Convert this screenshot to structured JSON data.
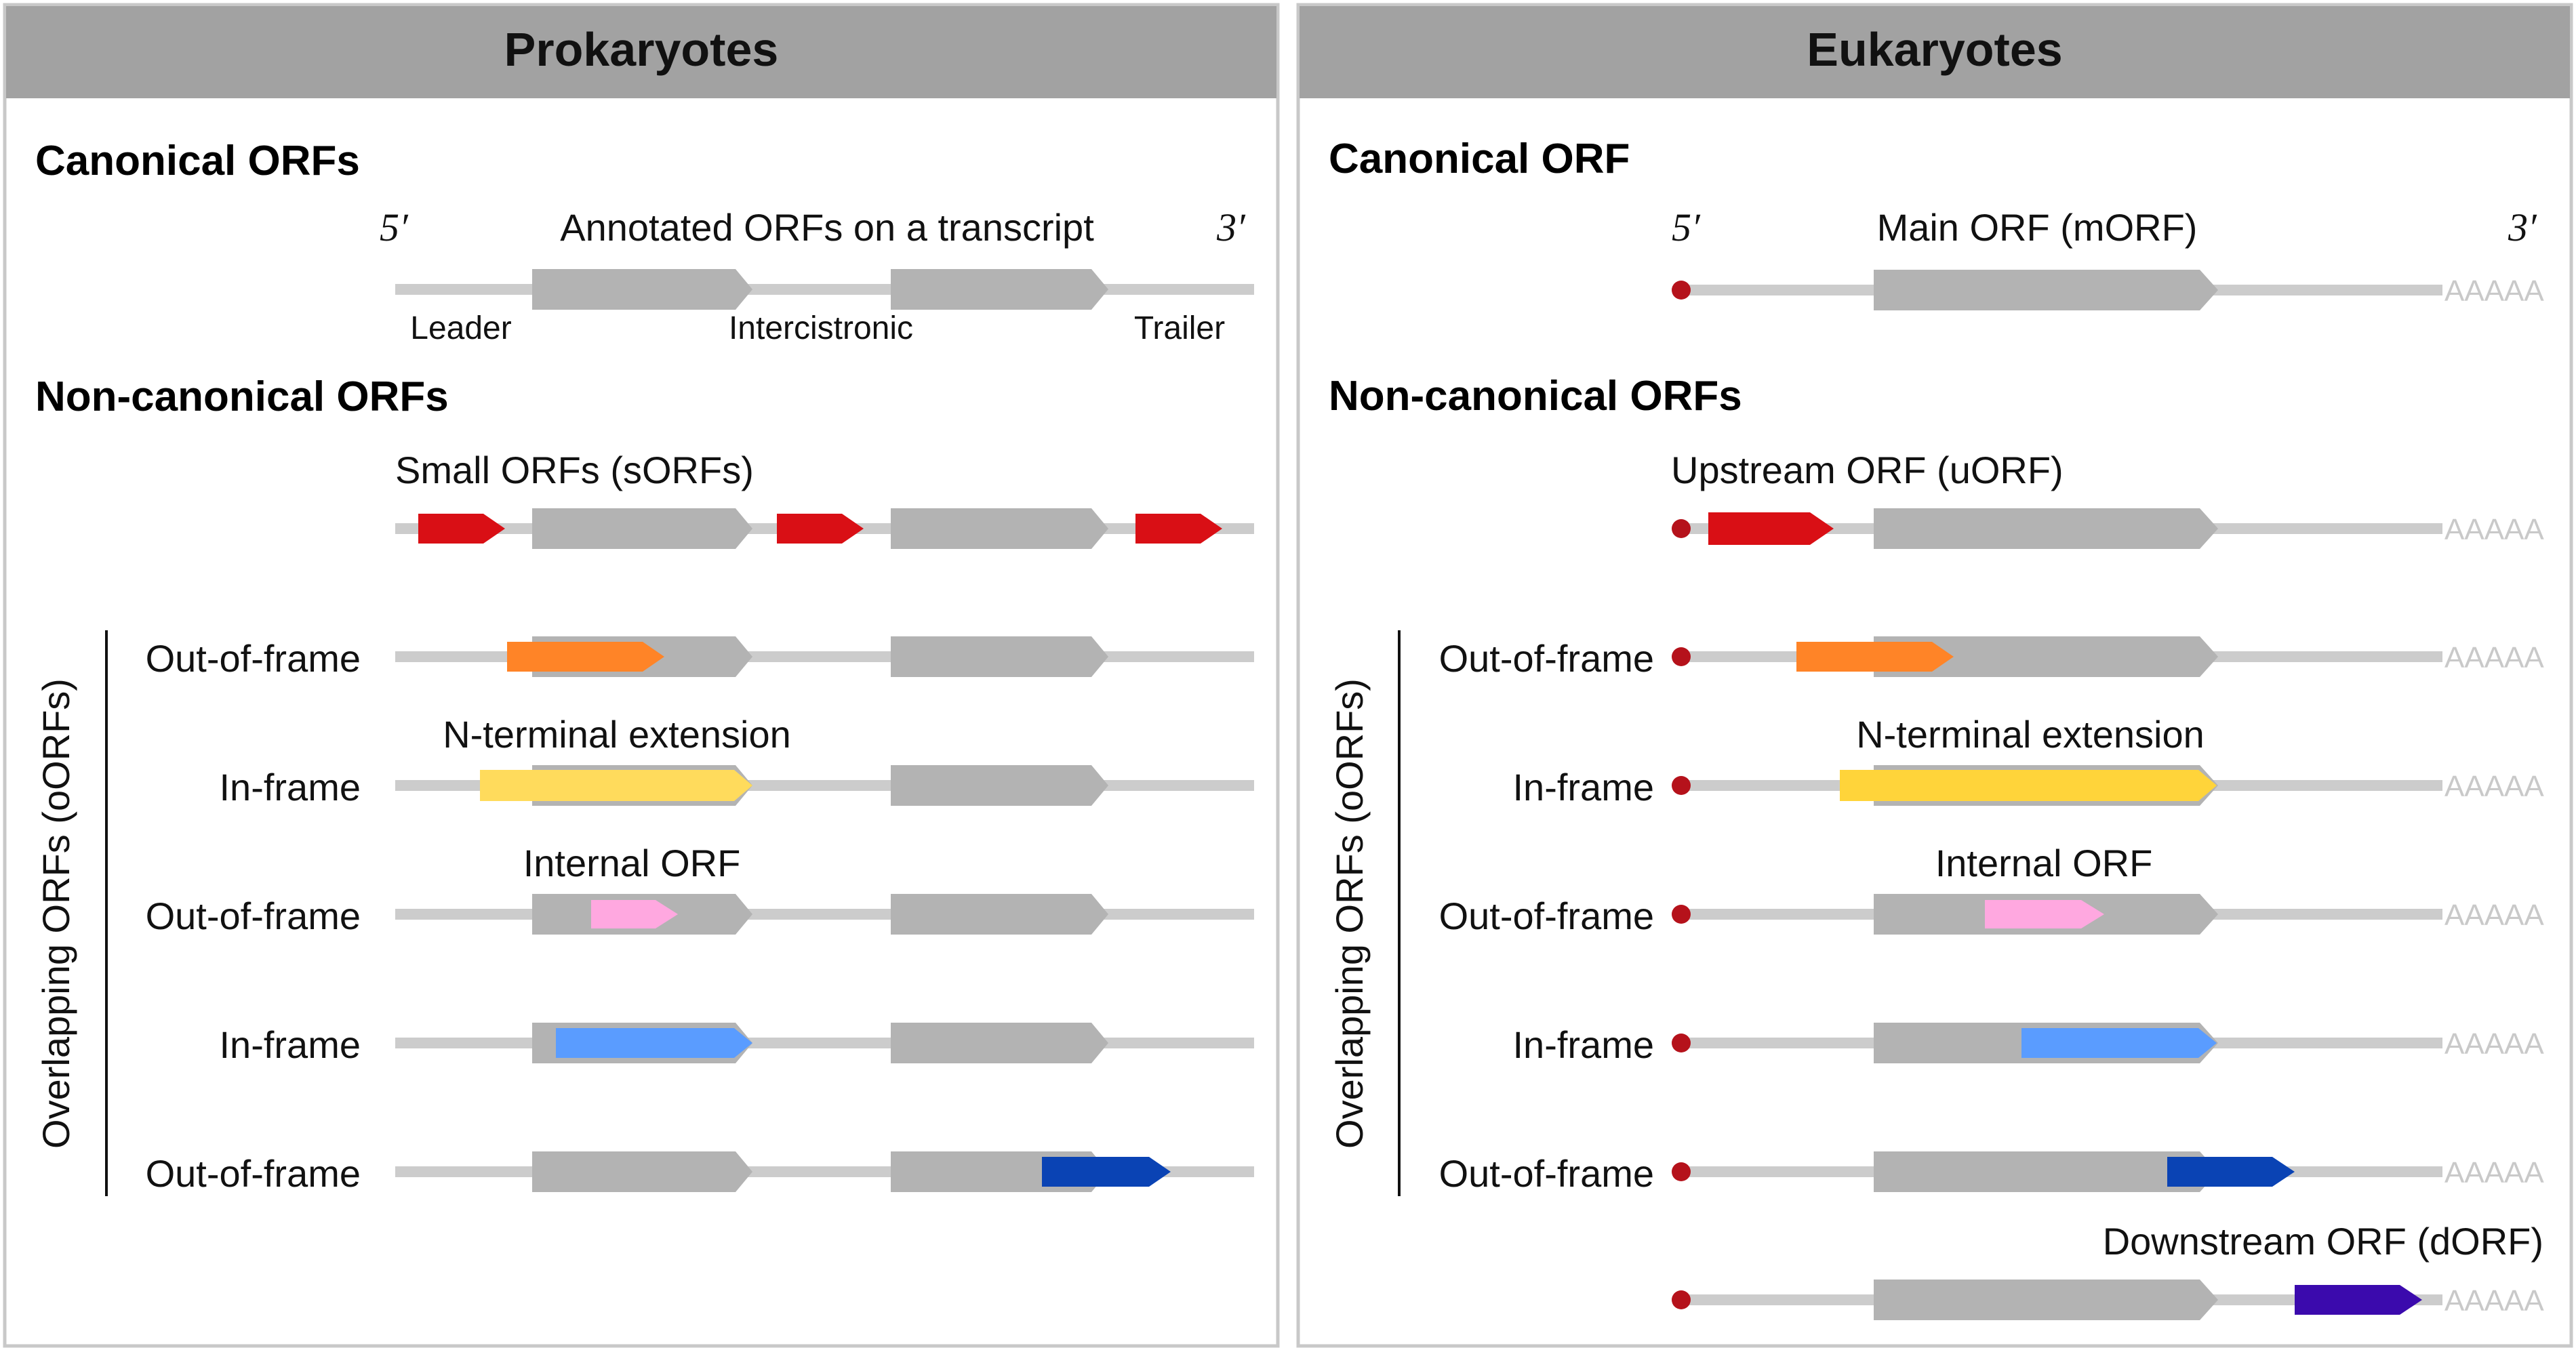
{
  "colors": {
    "header_bg": "#a2a2a2",
    "panel_border": "#c8c8c8",
    "line": "#cccccc",
    "main_orf": "#b3b3b3",
    "cap": "#b5121b",
    "small_orf": "#d90f15",
    "uorf": "#d90f15",
    "out_of_frame_1": "#ff8427",
    "n_terminal": "#ffd43a",
    "n_terminal_prok": "#ffdb5c",
    "internal": "#ffa8e0",
    "in_frame_internal": "#5a9cff",
    "out_of_frame_c": "#0a43b4",
    "dorf": "#3b0aad"
  },
  "left": {
    "header": "Prokaryotes",
    "canonical_title": "Canonical ORFs",
    "five_prime": "5′",
    "three_prime": "3′",
    "annotated_label": "Annotated ORFs on a transcript",
    "leader": "Leader",
    "intercistronic": "Intercistronic",
    "trailer": "Trailer",
    "noncanonical_title": "Non-canonical ORFs",
    "sorfs_label": "Small ORFs (sORFs)",
    "bracket_label": "Overlapping ORFs (oORFs)",
    "rows": [
      {
        "label": "Out-of-frame"
      },
      {
        "label": "In-frame",
        "annotation": "N-terminal extension"
      },
      {
        "label": "Out-of-frame",
        "annotation": "Internal ORF"
      },
      {
        "label": "In-frame"
      },
      {
        "label": "Out-of-frame"
      }
    ]
  },
  "right": {
    "header": "Eukaryotes",
    "canonical_title": "Canonical ORF",
    "five_prime": "5′",
    "three_prime": "3′",
    "main_label": "Main ORF (mORF)",
    "noncanonical_title": "Non-canonical ORFs",
    "uorf_label": "Upstream ORF (uORF)",
    "bracket_label": "Overlapping ORFs (oORFs)",
    "polya": "AAAAA",
    "rows": [
      {
        "label": "Out-of-frame"
      },
      {
        "label": "In-frame",
        "annotation": "N-terminal extension"
      },
      {
        "label": "Out-of-frame",
        "annotation": "Internal ORF"
      },
      {
        "label": "In-frame"
      },
      {
        "label": "Out-of-frame"
      }
    ],
    "dorf_label": "Downstream ORF (dORF)"
  }
}
